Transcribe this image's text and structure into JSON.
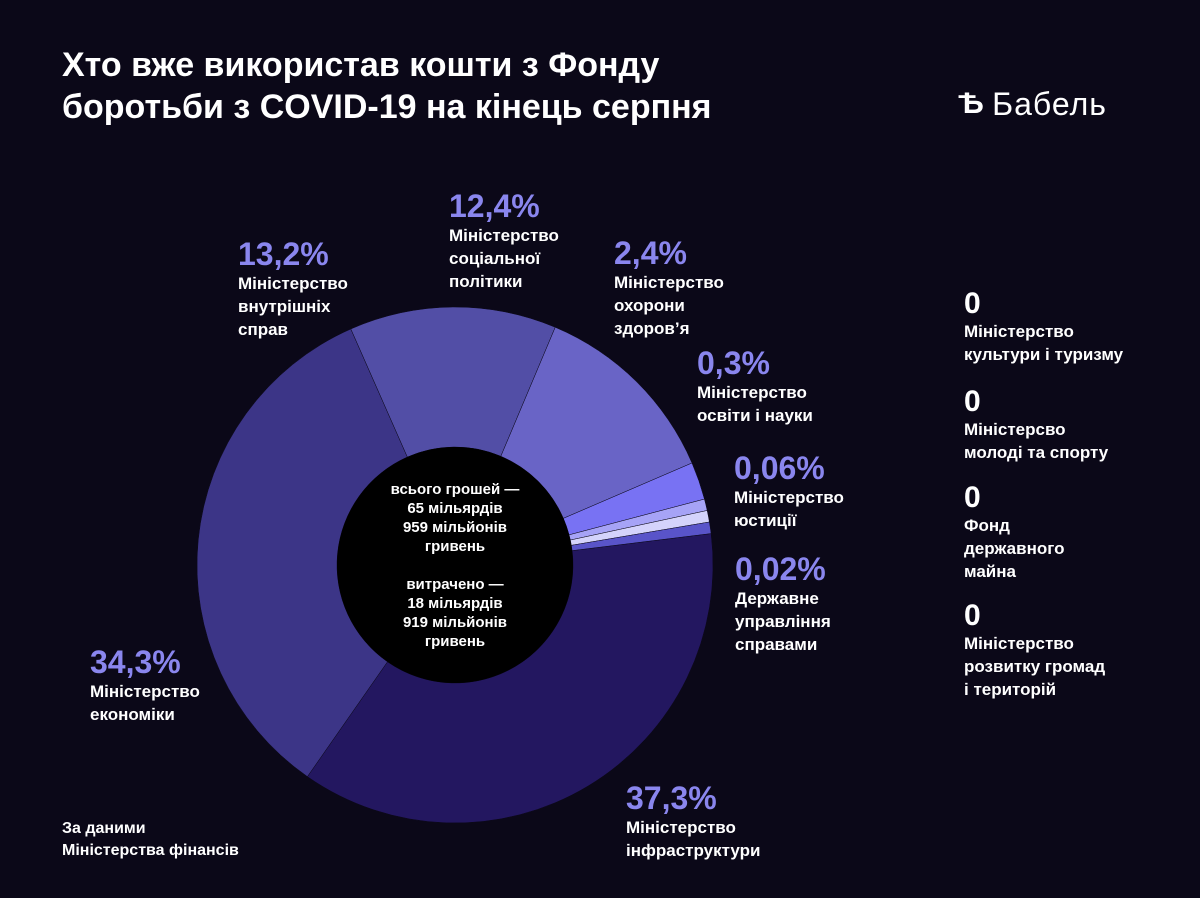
{
  "title": "Хто вже використав кошти з Фонду боротьби з COVID-19 на кінець серпня",
  "logo": {
    "mark": "Ѣ",
    "text": "Бабель"
  },
  "center": {
    "total": "всього грошей —\n65 мільярдів\n959 мільйонів\nгривень",
    "spent": "витрачено —\n18 мільярдів\n919 мільйонів\nгривень"
  },
  "source": "За даними\nМіністерства фінансів",
  "colors": {
    "background": "#0b0818",
    "hole": "#000000",
    "percent_text": "#8a86ee"
  },
  "chart_data": {
    "type": "pie",
    "variant": "donut",
    "series": [
      {
        "label": "37,3%",
        "name": "Міністерство\nінфраструктури",
        "value": 37.3,
        "color": "#231760"
      },
      {
        "label": "34,3%",
        "name": "Міністерство\nекономіки",
        "value": 34.3,
        "color": "#3c3587"
      },
      {
        "label": "13,2%",
        "name": "Міністерство\nвнутрішніх\nсправ",
        "value": 13.2,
        "color": "#524ea6"
      },
      {
        "label": "12,4%",
        "name": "Міністерство\nсоціальної\nполітики",
        "value": 12.4,
        "color": "#6964c6"
      },
      {
        "label": "2,4%",
        "name": "Міністерство\nохорони\nздоров’я",
        "value": 2.4,
        "color": "#7872f3"
      },
      {
        "label": "0,3%",
        "name": "Міністерство\nосвіти і науки",
        "value": 0.3,
        "color": "#a6a3f6"
      },
      {
        "label": "0,06%",
        "name": "Міністерство\nюстиції",
        "value": 0.06,
        "color": "#d4d3fb"
      },
      {
        "label": "0,02%",
        "name": "Державне\nуправління\nсправами",
        "value": 0.02,
        "color": "#5954c9"
      }
    ],
    "zero_items": [
      {
        "value": "0",
        "name": "Міністерство\nкультури і туризму"
      },
      {
        "value": "0",
        "name": "Міністерсво\nмолоді та спорту"
      },
      {
        "value": "0",
        "name": "Фонд\nдержавного\nмайна"
      },
      {
        "value": "0",
        "name": "Міністерство\nрозвитку громад\nі територій"
      }
    ]
  }
}
